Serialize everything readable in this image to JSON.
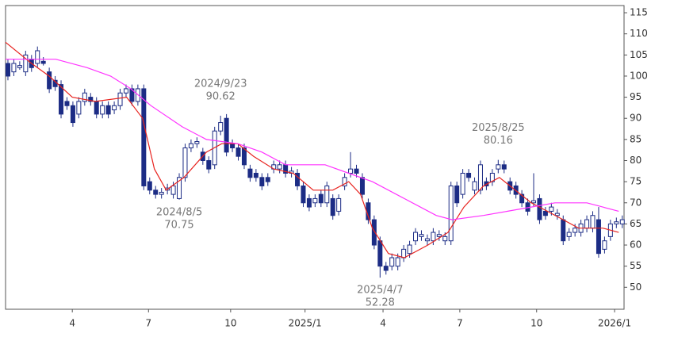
{
  "chart_data": {
    "type": "candlestick",
    "xlim": [
      -0.4,
      104.3
    ],
    "ylim": [
      44.8,
      116.7
    ],
    "yticks": [
      50,
      55,
      60,
      65,
      70,
      75,
      80,
      85,
      90,
      95,
      100,
      105,
      110,
      115
    ],
    "xticks": [
      {
        "value": 10.9,
        "label": "4"
      },
      {
        "value": 23.8,
        "label": "7"
      },
      {
        "value": 37.7,
        "label": "10"
      },
      {
        "value": 50.3,
        "label": "2025/1"
      },
      {
        "value": 63.5,
        "label": "4"
      },
      {
        "value": 76.5,
        "label": "7"
      },
      {
        "value": 89.5,
        "label": "10"
      },
      {
        "value": 102.7,
        "label": "2026/1"
      }
    ],
    "grid": true,
    "up_color": "#ffffff",
    "down_color": "#1c2c85",
    "candles": {
      "x": [
        0,
        1,
        2,
        3,
        4,
        5,
        6,
        7,
        8,
        9,
        10,
        11,
        12,
        13,
        14,
        15,
        16,
        17,
        18,
        19,
        20,
        21,
        22,
        23,
        24,
        25,
        26,
        27,
        28,
        29,
        30,
        31,
        32,
        33,
        34,
        35,
        36,
        37,
        38,
        39,
        40,
        41,
        42,
        43,
        44,
        45,
        46,
        47,
        48,
        49,
        50,
        51,
        52,
        53,
        54,
        55,
        56,
        57,
        58,
        59,
        60,
        61,
        62,
        63,
        64,
        65,
        66,
        67,
        68,
        69,
        70,
        71,
        72,
        73,
        74,
        75,
        76,
        77,
        78,
        79,
        80,
        81,
        82,
        83,
        84,
        85,
        86,
        87,
        88,
        89,
        90,
        91,
        92,
        93,
        94,
        95,
        96,
        97,
        98,
        99,
        100,
        101,
        102,
        103,
        104
      ],
      "open": [
        103,
        101,
        102,
        101,
        104,
        103,
        103.5,
        101,
        99,
        98,
        94,
        93,
        91,
        94,
        95,
        94,
        91,
        93,
        92,
        93,
        96,
        97,
        94,
        97,
        75,
        73,
        72,
        73,
        72,
        71,
        76,
        83,
        84,
        82,
        80,
        79,
        87,
        90,
        84,
        83,
        83,
        78,
        77,
        76,
        76,
        78,
        78,
        79,
        77,
        77,
        74,
        71,
        70,
        72,
        70,
        71,
        68,
        74,
        77,
        78,
        76,
        70,
        66,
        61,
        55,
        55,
        55,
        57,
        58,
        61,
        62,
        61,
        61,
        62,
        61,
        61,
        74,
        72,
        77,
        73,
        73,
        75,
        75,
        78,
        79,
        75,
        74,
        72,
        70,
        70,
        71,
        68,
        68,
        67,
        66,
        62,
        63,
        63,
        64,
        64,
        66,
        59,
        62,
        65,
        65
      ],
      "high": [
        104,
        104,
        103.5,
        106,
        105,
        107,
        104.5,
        102,
        100,
        99,
        95,
        94,
        95,
        97,
        96,
        95,
        94,
        94,
        94,
        97,
        98,
        98,
        98,
        98,
        76,
        74,
        73.5,
        74.5,
        75,
        77,
        84,
        85,
        85.5,
        83,
        81,
        88,
        90.62,
        91,
        85,
        84,
        84,
        79,
        78,
        77,
        77,
        80,
        80,
        80,
        78.5,
        78,
        75,
        72,
        72,
        73,
        75,
        72,
        72,
        77,
        82,
        79,
        77,
        71,
        67,
        62,
        56,
        58,
        58,
        60,
        61,
        64,
        63.5,
        62.5,
        64,
        63.5,
        63,
        75,
        75,
        78,
        78,
        76,
        80,
        76,
        78,
        80.16,
        80,
        76,
        75,
        73,
        71,
        77,
        72,
        69,
        70,
        68.5,
        67,
        64,
        65,
        66,
        67,
        68,
        69,
        62,
        66,
        66.5,
        67
      ],
      "low": [
        99,
        100,
        101.5,
        100,
        101,
        102,
        102.5,
        96,
        96.5,
        90,
        92,
        88,
        90,
        93,
        93,
        90,
        90,
        90,
        91,
        92,
        95,
        93,
        93,
        73,
        72,
        71,
        71,
        72,
        71,
        70.75,
        75,
        82,
        83,
        79,
        77,
        78,
        86,
        81,
        82,
        80,
        78,
        75,
        75,
        73,
        74,
        77,
        77,
        76,
        76,
        73,
        69,
        68,
        69,
        69,
        69,
        66,
        67,
        73,
        76,
        76,
        71,
        65,
        59,
        52.28,
        53,
        54,
        54,
        56,
        57,
        60,
        61,
        60,
        60,
        61,
        60,
        60,
        69,
        71,
        75,
        72,
        72,
        73,
        74,
        77,
        77,
        72,
        71,
        69,
        67,
        69,
        65,
        66,
        67,
        66,
        60,
        61,
        62,
        62,
        63,
        63,
        57,
        58,
        61,
        64,
        64
      ],
      "close": [
        100,
        103,
        102.5,
        105,
        102,
        106,
        103,
        97,
        97.5,
        91,
        93,
        89,
        94,
        96,
        94,
        91,
        93,
        91,
        93,
        96,
        97,
        94,
        97,
        74,
        73,
        72,
        72.5,
        73.5,
        74,
        76,
        83,
        84,
        84.5,
        80,
        78,
        87,
        89,
        82,
        83,
        81,
        79,
        76,
        76,
        74,
        75,
        79,
        79,
        77,
        77.5,
        74,
        70,
        69,
        71,
        70,
        74,
        67,
        71,
        76,
        78,
        77,
        72,
        66,
        60,
        55,
        54,
        57,
        57,
        59,
        60,
        63,
        62.5,
        61.5,
        63,
        62.5,
        62,
        74,
        70,
        77,
        76,
        75,
        79,
        74,
        77,
        79,
        78,
        73,
        72,
        70,
        68,
        70.5,
        66,
        67,
        69,
        67.5,
        61,
        63,
        64,
        65,
        66,
        67,
        58,
        61,
        65,
        65.5,
        66
      ]
    },
    "ma": [
      {
        "color": "#e8231f",
        "x": [
          -0.4,
          4.0,
          7.0,
          10.9,
          14.8,
          20.1,
          22.8,
          24.8,
          26.8,
          29.8,
          33.6,
          36.2,
          38.9,
          41.6,
          45.0,
          48.3,
          51.7,
          55.0,
          57.7,
          59.7,
          61.7,
          64.4,
          67.1,
          71.1,
          74.5,
          77.2,
          80.5,
          83.2,
          85.9,
          88.6,
          91.3,
          94.0,
          96.6,
          100.7,
          103.4
        ],
        "values": [
          108,
          103,
          100,
          95,
          94,
          95,
          90,
          78,
          73,
          76,
          82,
          84,
          84,
          81,
          78,
          77,
          73,
          73,
          75,
          72,
          64,
          58,
          57,
          60,
          63,
          69,
          74,
          76,
          73,
          70,
          68,
          66,
          64,
          64,
          63
        ]
      },
      {
        "color": "#ff33ff",
        "x": [
          -0.4,
          4.0,
          8.1,
          13.4,
          17.4,
          20.8,
          24.2,
          29.5,
          33.6,
          38.9,
          43.0,
          47.0,
          51.0,
          53.7,
          57.7,
          61.7,
          67.1,
          72.5,
          75.2,
          80.5,
          84.6,
          88.6,
          92.6,
          98.0,
          100.7,
          103.4
        ],
        "values": [
          104,
          104,
          104,
          102,
          100,
          97,
          93,
          88,
          85,
          84,
          82,
          79,
          79,
          79,
          77,
          75,
          71,
          67,
          66,
          67,
          68,
          69,
          70,
          70,
          69,
          68
        ]
      }
    ],
    "annotations": [
      {
        "date": "2024/9/23",
        "value": 90.62
      },
      {
        "date": "2024/8/5",
        "value": 70.75
      },
      {
        "date": "2025/4/7",
        "value": 52.28
      },
      {
        "date": "2025/8/25",
        "value": 80.16
      }
    ]
  }
}
